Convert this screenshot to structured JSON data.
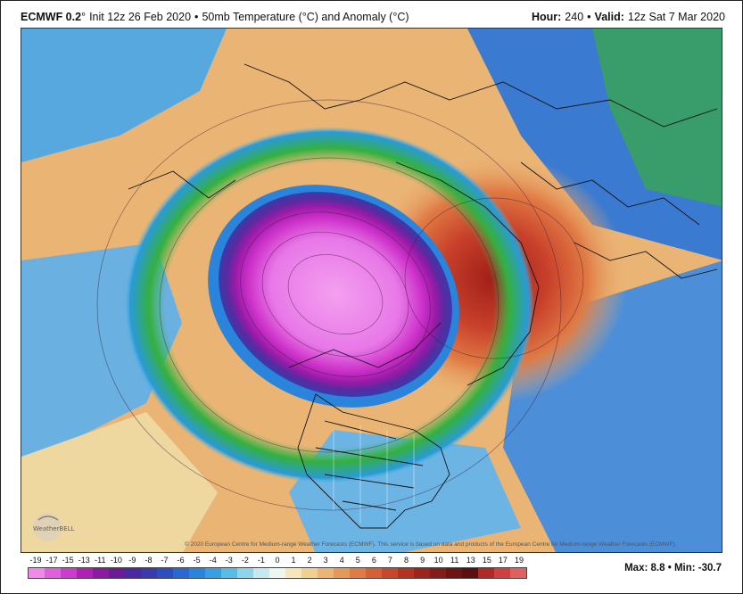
{
  "header": {
    "model": "ECMWF 0.2",
    "init": "Init 12z 26 Feb 2020",
    "bullet": "•",
    "product": "50mb Temperature (°C) and Anomaly (°C)",
    "hour_label": "Hour:",
    "hour_value": "240",
    "valid_label": "Valid:",
    "valid_value": "12z Sat 7 Mar 2020"
  },
  "credit": "© 2020 European Centre for Medium-range Weather Forecasts (ECMWF). This service is based on data and products of the European Centre for Medium-range Weather Forecasts (ECMWF).",
  "logo_text": "WeatherBELL",
  "colorbar": {
    "ticks": [
      "-19",
      "-17",
      "-15",
      "-13",
      "-11",
      "-10",
      "-9",
      "-8",
      "-7",
      "-6",
      "-5",
      "-4",
      "-3",
      "-2",
      "-1",
      "0",
      "1",
      "2",
      "3",
      "4",
      "5",
      "6",
      "7",
      "8",
      "9",
      "10",
      "11",
      "13",
      "15",
      "17",
      "19"
    ],
    "colors": [
      "#f08ae8",
      "#e060dc",
      "#cc3ccc",
      "#b020b4",
      "#8a1aa0",
      "#6a1c96",
      "#4a2a9e",
      "#3a3aaa",
      "#2e4ec0",
      "#2a66d4",
      "#2a84dc",
      "#36a0e0",
      "#58bce4",
      "#8ed4ea",
      "#c6e8f0",
      "#eef6f2",
      "#f6e6bc",
      "#f0d090",
      "#eab474",
      "#e4985a",
      "#de7c46",
      "#d66036",
      "#c8462a",
      "#b43222",
      "#9c241c",
      "#841c18",
      "#6e1414",
      "#5a0f10",
      "#b02828",
      "#d04040",
      "#e06060"
    ]
  },
  "stats": {
    "max_label": "Max:",
    "max_value": "8.8",
    "min_label": "Min:",
    "min_value": "-30.7"
  }
}
